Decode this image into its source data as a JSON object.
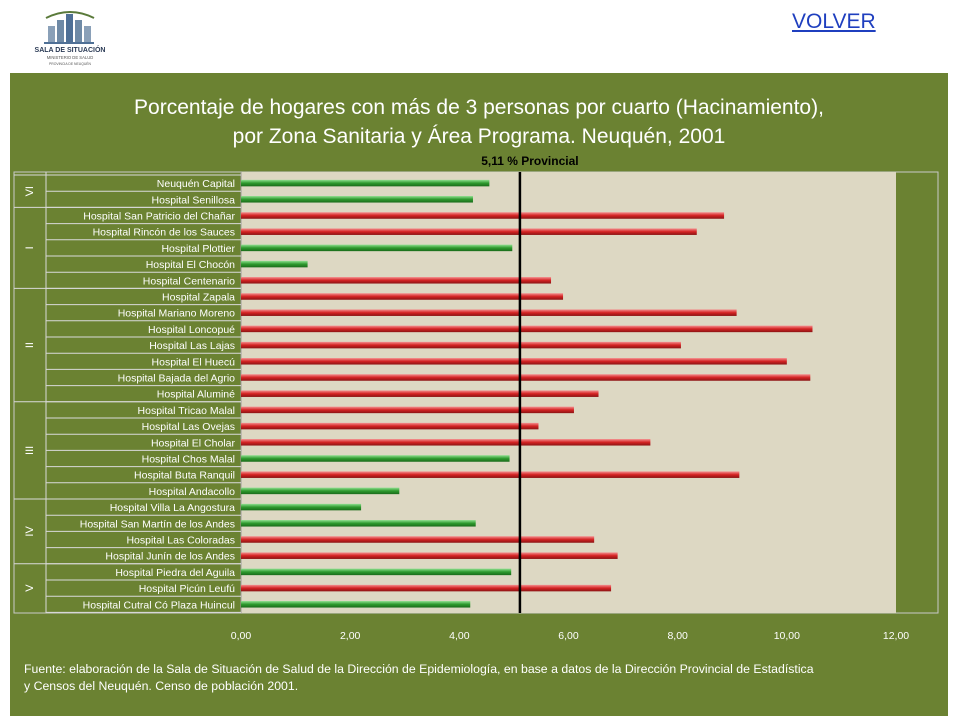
{
  "header": {
    "logo": {
      "line1": "SALA DE SITUACIÓN",
      "line2": "MINISTERIO DE SALUD",
      "line3": "PROVINCIA DE NEUQUÉN"
    },
    "back_link": "VOLVER"
  },
  "chart_data": {
    "type": "bar",
    "orientation": "horizontal",
    "title": [
      "Porcentaje  de hogares con más de 3 personas por cuarto (Hacinamiento),",
      "por Zona Sanitaria y Área Programa. Neuquén, 2001"
    ],
    "reference_line": {
      "value": 5.11,
      "label": "5,11 % Provincial"
    },
    "xlim": [
      0,
      12
    ],
    "x_ticks": [
      "0,00",
      "2,00",
      "4,00",
      "6,00",
      "8,00",
      "10,00",
      "12,00"
    ],
    "colors": {
      "below": "#2e9a2e",
      "above": "#d42323",
      "plot_bg": "#ddd8c3",
      "panel_bg": "#6b8232"
    },
    "grid": false,
    "categories": [
      "Neuquén Capital",
      "Hospital Senillosa",
      "Hospital San Patricio del Chañar",
      "Hospital Rincón de los Sauces",
      "Hospital Plottier",
      "Hospital El Chocón",
      "Hospital Centenario",
      "Hospital Zapala",
      "Hospital Mariano Moreno",
      "Hospital Loncopué",
      "Hospital Las Lajas",
      "Hospital El Huecú",
      "Hospital Bajada del Agrio",
      "Hospital Aluminé",
      "Hospital Tricao Malal",
      "Hospital Las Ovejas",
      "Hospital El Cholar",
      "Hospital Chos Malal",
      "Hospital Buta Ranquil",
      "Hospital Andacollo",
      "Hospital Villa La Angostura",
      "Hospital San Martín de los Andes",
      "Hospital Las Coloradas",
      "Hospital Junín de los Andes",
      "Hospital Piedra del Aguila",
      "Hospital Picún Leufú",
      "Hospital Cutral Có Plaza Huincul"
    ],
    "values": [
      4.55,
      4.25,
      8.85,
      8.35,
      4.97,
      1.22,
      5.68,
      5.9,
      9.08,
      10.47,
      8.06,
      10.0,
      10.43,
      6.55,
      6.1,
      5.45,
      7.5,
      4.92,
      9.13,
      2.9,
      2.2,
      4.3,
      6.47,
      6.9,
      4.95,
      6.78,
      4.2
    ],
    "zones": [
      {
        "label": "VI",
        "start": 0,
        "count": 2
      },
      {
        "label": "I",
        "start": 2,
        "count": 5
      },
      {
        "label": "II",
        "start": 7,
        "count": 7
      },
      {
        "label": "III",
        "start": 14,
        "count": 6
      },
      {
        "label": "IV",
        "start": 20,
        "count": 4
      },
      {
        "label": "V",
        "start": 24,
        "count": 3
      }
    ]
  },
  "footer": {
    "source_line1": "Fuente: elaboración  de la Sala de Situación de Salud de la Dirección de Epidemiología,   en base a datos de la Dirección Provincial de Estadística",
    "source_line2": " y Censos del Neuquén. Censo de población 2001."
  }
}
